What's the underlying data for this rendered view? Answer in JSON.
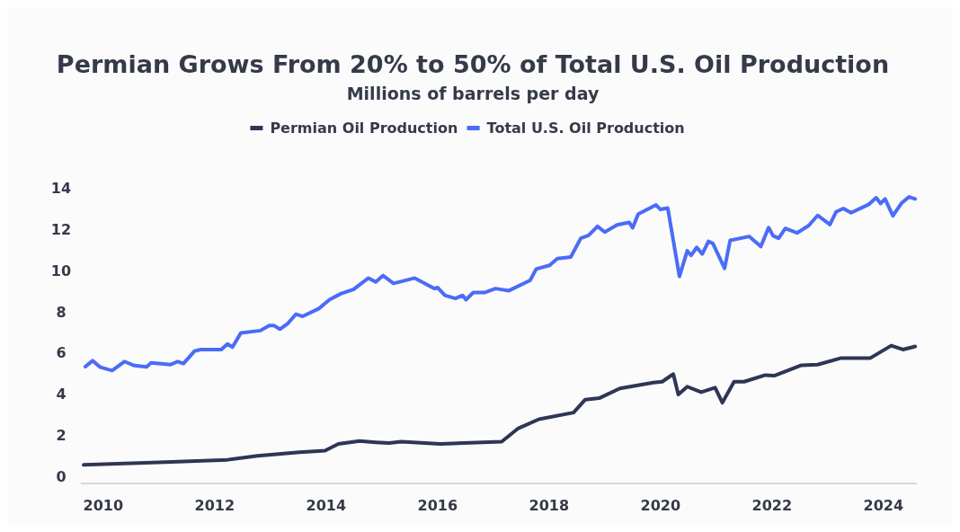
{
  "chart_data": {
    "type": "line",
    "title": "Permian Grows From 20% to 50% of Total U.S. Oil Production",
    "subtitle": "Millions of barrels per day",
    "legend": "top",
    "grid": false,
    "marker": "none",
    "line_style": "solid",
    "xlim": [
      2009.6,
      2024.6
    ],
    "xticks": [
      2010,
      2012,
      2014,
      2016,
      2018,
      2020,
      2022,
      2024
    ],
    "ylim": [
      -0.35,
      14
    ],
    "yticks": [
      0,
      2,
      4,
      6,
      8,
      10,
      12,
      14
    ],
    "series": [
      {
        "name": "Permian Oil Production",
        "color": "#2f3555",
        "x": [
          2009.65,
          2011,
          2012.23,
          2012.77,
          2013.52,
          2013.98,
          2014.22,
          2014.6,
          2014.89,
          2015.13,
          2015.35,
          2016.05,
          2017.15,
          2017.45,
          2017.82,
          2018.44,
          2018.65,
          2018.9,
          2019.27,
          2019.87,
          2020.03,
          2020.23,
          2020.32,
          2020.48,
          2020.73,
          2020.98,
          2021.11,
          2021.32,
          2021.5,
          2021.88,
          2022.04,
          2022.53,
          2022.82,
          2023.23,
          2023.76,
          2024.14,
          2024.35,
          2024.57
        ],
        "values": [
          0.55,
          0.68,
          0.8,
          0.99,
          1.17,
          1.24,
          1.57,
          1.71,
          1.65,
          1.61,
          1.68,
          1.57,
          1.68,
          2.33,
          2.77,
          3.09,
          3.72,
          3.79,
          4.26,
          4.55,
          4.59,
          4.96,
          3.97,
          4.35,
          4.08,
          4.3,
          3.57,
          4.59,
          4.59,
          4.91,
          4.88,
          5.39,
          5.42,
          5.73,
          5.73,
          6.34,
          6.15,
          6.3
        ]
      },
      {
        "name": "Total U.S. Oil Production",
        "color": "#4a6cf7",
        "x": [
          2009.68,
          2009.81,
          2009.95,
          2010.16,
          2010.38,
          2010.56,
          2010.78,
          2010.86,
          2011.21,
          2011.34,
          2011.44,
          2011.64,
          2011.75,
          2012.12,
          2012.23,
          2012.32,
          2012.47,
          2012.82,
          2012.98,
          2013.06,
          2013.17,
          2013.31,
          2013.46,
          2013.58,
          2013.87,
          2014.06,
          2014.27,
          2014.49,
          2014.76,
          2014.89,
          2015.02,
          2015.21,
          2015.59,
          2015.94,
          2016.0,
          2016.13,
          2016.32,
          2016.45,
          2016.51,
          2016.64,
          2016.85,
          2017.04,
          2017.28,
          2017.66,
          2017.77,
          2018.01,
          2018.15,
          2018.39,
          2018.57,
          2018.71,
          2018.87,
          2019.0,
          2019.22,
          2019.44,
          2019.5,
          2019.6,
          2019.92,
          2020.0,
          2020.13,
          2020.34,
          2020.48,
          2020.55,
          2020.65,
          2020.75,
          2020.86,
          2020.94,
          2021.15,
          2021.25,
          2021.59,
          2021.8,
          2021.94,
          2022.02,
          2022.12,
          2022.24,
          2022.45,
          2022.66,
          2022.82,
          2023.04,
          2023.15,
          2023.28,
          2023.42,
          2023.74,
          2023.87,
          2023.95,
          2024.03,
          2024.17,
          2024.33,
          2024.46,
          2024.57
        ],
        "values": [
          5.32,
          5.61,
          5.29,
          5.13,
          5.57,
          5.37,
          5.31,
          5.51,
          5.42,
          5.57,
          5.47,
          6.08,
          6.15,
          6.15,
          6.42,
          6.27,
          6.96,
          7.07,
          7.32,
          7.32,
          7.14,
          7.41,
          7.87,
          7.76,
          8.14,
          8.57,
          8.87,
          9.07,
          9.62,
          9.43,
          9.74,
          9.36,
          9.62,
          9.11,
          9.16,
          8.78,
          8.63,
          8.78,
          8.57,
          8.92,
          8.92,
          9.11,
          9.01,
          9.51,
          10.06,
          10.24,
          10.57,
          10.64,
          11.55,
          11.69,
          12.13,
          11.85,
          12.2,
          12.32,
          12.06,
          12.72,
          13.17,
          12.95,
          13.02,
          9.7,
          10.94,
          10.72,
          11.11,
          10.79,
          11.4,
          11.3,
          10.09,
          11.45,
          11.64,
          11.15,
          12.07,
          11.67,
          11.55,
          12.03,
          11.81,
          12.17,
          12.66,
          12.22,
          12.83,
          13.0,
          12.79,
          13.2,
          13.52,
          13.24,
          13.46,
          12.64,
          13.27,
          13.56,
          13.46
        ]
      }
    ]
  }
}
